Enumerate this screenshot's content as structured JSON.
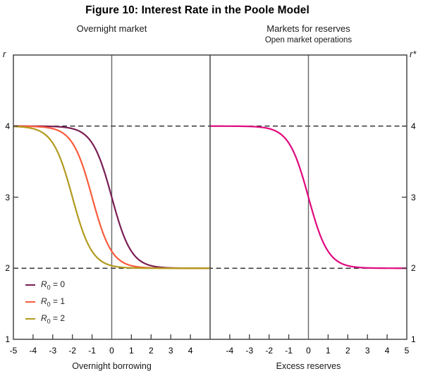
{
  "title": "Figure 10: Interest Rate in the Poole Model",
  "colors": {
    "axis": "#3a3a3a",
    "zero_line": "#666666",
    "dashed_line": "#111111",
    "series_r0_0": "#7a1e53",
    "series_r0_1": "#f95c3c",
    "series_r0_2": "#b29a1d",
    "series_reserves": "#e0087e"
  },
  "chart_data": [
    {
      "type": "line",
      "title": "Overnight market",
      "xlabel": "Overnight borrowing",
      "ylabel": "r",
      "ylabel_side": "left",
      "xlim": [
        -5,
        5
      ],
      "ylim": [
        1,
        5
      ],
      "xticks": [
        -5,
        -4,
        -3,
        -2,
        -1,
        0,
        1,
        2,
        3,
        4
      ],
      "yticks": [
        1,
        2,
        3,
        4
      ],
      "dashed_hlines": [
        4,
        2
      ],
      "zero_vline": 0,
      "grid": "off",
      "legend_position": "lower-left",
      "curve_model": "r = 3 - tanh(x - center)",
      "x_samples": [
        -5,
        -4,
        -3,
        -2,
        -1,
        0,
        1,
        2,
        3,
        4,
        5
      ],
      "series": [
        {
          "name": "R0 = 0",
          "legend": {
            "base": "R",
            "sub": "0",
            "rhs": "= 0"
          },
          "color": "#7a1e53",
          "center": 0,
          "values": [
            4.0,
            4.0,
            4.0,
            3.96,
            3.76,
            3.0,
            2.24,
            2.04,
            2.0,
            2.0,
            2.0
          ]
        },
        {
          "name": "R0 = 1",
          "legend": {
            "base": "R",
            "sub": "0",
            "rhs": "= 1"
          },
          "color": "#f95c3c",
          "center": -1,
          "values": [
            4.0,
            4.0,
            3.96,
            3.76,
            3.0,
            2.24,
            2.04,
            2.0,
            2.0,
            2.0,
            2.0
          ]
        },
        {
          "name": "R0 = 2",
          "legend": {
            "base": "R",
            "sub": "0",
            "rhs": "= 2"
          },
          "color": "#b29a1d",
          "center": -2,
          "values": [
            4.0,
            3.96,
            3.76,
            3.0,
            2.24,
            2.04,
            2.0,
            2.0,
            2.0,
            2.0,
            2.0
          ]
        }
      ]
    },
    {
      "type": "line",
      "title": "Markets for reserves",
      "subtitle": "Open market operations",
      "xlabel": "Excess reserves",
      "ylabel": "r*",
      "ylabel_side": "right",
      "xlim": [
        -5,
        5
      ],
      "ylim": [
        1,
        5
      ],
      "xticks": [
        -4,
        -3,
        -2,
        -1,
        0,
        1,
        2,
        3,
        4,
        5
      ],
      "yticks": [
        1,
        2,
        3,
        4
      ],
      "dashed_hlines": [
        4,
        2
      ],
      "zero_vline": 0,
      "grid": "off",
      "curve_model": "r = 3 - tanh(x)",
      "x_samples": [
        -5,
        -4,
        -3,
        -2,
        -1,
        0,
        1,
        2,
        3,
        4,
        5
      ],
      "series": [
        {
          "color": "#e0087e",
          "center": 0,
          "values": [
            4.0,
            4.0,
            4.0,
            3.96,
            3.76,
            3.0,
            2.24,
            2.04,
            2.0,
            2.0,
            2.0
          ]
        }
      ]
    }
  ]
}
